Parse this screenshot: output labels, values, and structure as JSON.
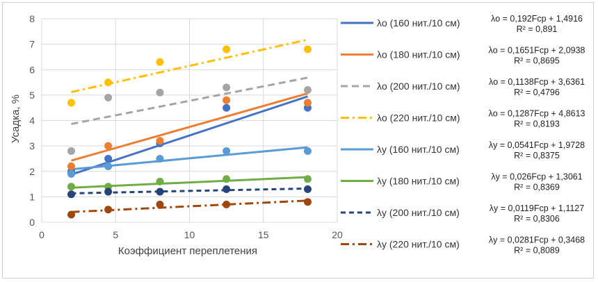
{
  "chart_data": {
    "type": "scatter",
    "title": "",
    "xlabel": "Коэффициент переплетения",
    "ylabel": "Усадка, %",
    "xlim": [
      0,
      20
    ],
    "ylim": [
      0,
      8
    ],
    "x_ticks": [
      "0",
      "5",
      "10",
      "15",
      "20"
    ],
    "y_ticks": [
      "0",
      "1",
      "2",
      "3",
      "4",
      "5",
      "6",
      "7",
      "8"
    ],
    "grid": true,
    "legend_position": "right",
    "x": [
      2,
      4.5,
      8,
      12.5,
      18
    ],
    "series": [
      {
        "name": "λо (160 нит./10 см)",
        "color": "#4472C4",
        "dash": "solid",
        "values": [
          2.0,
          2.5,
          3.1,
          4.5,
          4.5
        ],
        "trendline": {
          "slope": 0.192,
          "intercept": 1.4916
        },
        "equation": "λо = 0,192Fср + 1,4916",
        "r2": "R² = 0,891"
      },
      {
        "name": "λо (180 нит./10 см)",
        "color": "#ED7D31",
        "dash": "solid",
        "values": [
          2.2,
          3.0,
          3.2,
          4.8,
          4.7
        ],
        "trendline": {
          "slope": 0.1651,
          "intercept": 2.0938
        },
        "equation": "λо = 0,1651Fср + 2,0938",
        "r2": "R² = 0,8695"
      },
      {
        "name": "λо (200 нит./10 см)",
        "color": "#A5A5A5",
        "dash": "dash",
        "values": [
          2.8,
          4.9,
          5.1,
          5.3,
          5.2
        ],
        "trendline": {
          "slope": 0.1138,
          "intercept": 3.6361
        },
        "equation": "λо = 0,1138Fср + 3,6361",
        "r2": "R² = 0,4796"
      },
      {
        "name": "λо (220 нит./10 см)",
        "color": "#FFC000",
        "dash": "dashdot",
        "values": [
          4.7,
          5.5,
          6.3,
          6.8,
          6.8
        ],
        "trendline": {
          "slope": 0.1287,
          "intercept": 4.8613
        },
        "equation": "λо = 0,1287Fср + 4,8613",
        "r2": "R² = 0,8193"
      },
      {
        "name": "λу (160 нит./10 см)",
        "color": "#5B9BD5",
        "dash": "solid",
        "values": [
          1.9,
          2.2,
          2.5,
          2.8,
          2.8
        ],
        "trendline": {
          "slope": 0.0541,
          "intercept": 1.9728
        },
        "equation": "λу = 0,0541Fср + 1,9728",
        "r2": "R² = 0,8375"
      },
      {
        "name": "λу (180 нит./10 см)",
        "color": "#70AD47",
        "dash": "solid",
        "values": [
          1.4,
          1.4,
          1.6,
          1.7,
          1.7
        ],
        "trendline": {
          "slope": 0.026,
          "intercept": 1.3061
        },
        "equation": "λу = 0,026Fср + 1,3061",
        "r2": "R² = 0,8369"
      },
      {
        "name": "λу (200 нит./10 см)",
        "color": "#264478",
        "dash": "shortdash",
        "values": [
          1.1,
          1.2,
          1.2,
          1.3,
          1.3
        ],
        "trendline": {
          "slope": 0.0119,
          "intercept": 1.1127
        },
        "equation": "λу = 0,0119Fср + 1,1127",
        "r2": "R² = 0,8306"
      },
      {
        "name": "λу (220 нит./10 см)",
        "color": "#9E480E",
        "dash": "dashdot",
        "values": [
          0.3,
          0.5,
          0.7,
          0.7,
          0.8
        ],
        "trendline": {
          "slope": 0.0281,
          "intercept": 0.3468
        },
        "equation": "λу = 0,0281Fср + 0,3468",
        "r2": "R² = 0,8089"
      }
    ]
  }
}
